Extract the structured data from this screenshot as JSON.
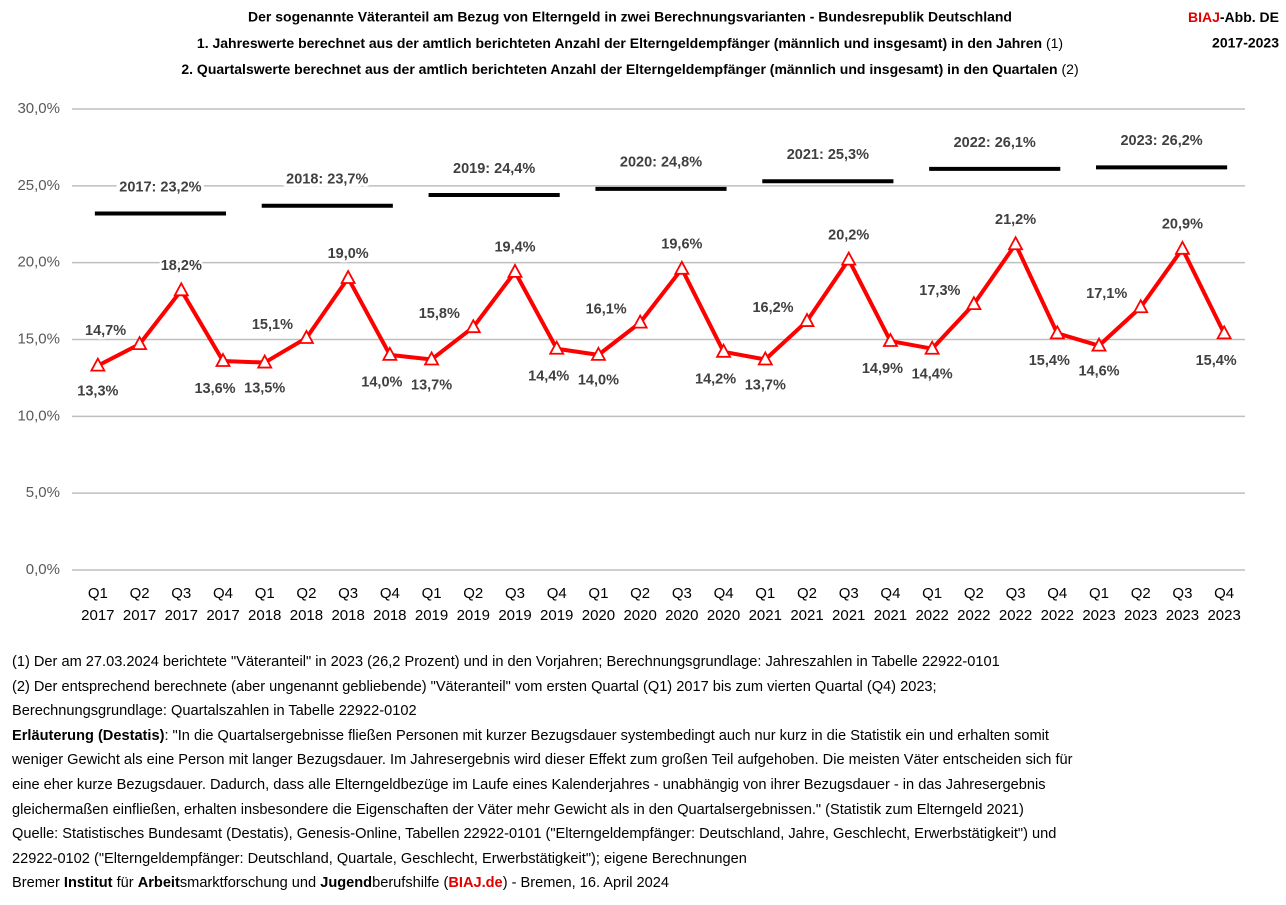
{
  "chart_data": {
    "type": "line",
    "title": "Der sogenannte Väteranteil am Bezug von Elterngeld in zwei Berechnungsvarianten - Bundesrepublik Deutschland",
    "subtitles": [
      {
        "text": "1. Jahreswerte berechnet aus der amtlich berichteten Anzahl der Elterngeldempfänger (männlich und insgesamt) in den Jahren",
        "note": "(1)"
      },
      {
        "text": "2. Quartalswerte berechnet aus der amtlich berichteten Anzahl der Elterngeldempfänger (männlich und insgesamt) in den Quartalen",
        "note": "(2)"
      }
    ],
    "badge": {
      "brand": "BIAJ",
      "rest": "-Abb. DE",
      "brand_color": "#e00000"
    },
    "period": "2017-2023",
    "categories": [
      "Q1 2017",
      "Q2 2017",
      "Q3 2017",
      "Q4 2017",
      "Q1 2018",
      "Q2 2018",
      "Q3 2018",
      "Q4 2018",
      "Q1 2019",
      "Q2 2019",
      "Q3 2019",
      "Q4 2019",
      "Q1 2020",
      "Q2 2020",
      "Q3 2020",
      "Q4 2020",
      "Q1 2021",
      "Q2 2021",
      "Q3 2021",
      "Q4 2021",
      "Q1 2022",
      "Q2 2022",
      "Q3 2022",
      "Q4 2022",
      "Q1 2023",
      "Q2 2023",
      "Q3 2023",
      "Q4 2023"
    ],
    "series": [
      {
        "color": "#ff0000",
        "values": [
          13.3,
          14.7,
          18.2,
          13.6,
          13.5,
          15.1,
          19.0,
          14.0,
          13.7,
          15.8,
          19.4,
          14.4,
          14.0,
          16.1,
          19.6,
          14.2,
          13.7,
          16.2,
          20.2,
          14.9,
          14.4,
          17.3,
          21.2,
          15.4,
          14.6,
          17.1,
          20.9,
          15.4
        ],
        "value_labels": [
          "13,3%",
          "14,7%",
          "18,2%",
          "13,6%",
          "13,5%",
          "15,1%",
          "19,0%",
          "14,0%",
          "13,7%",
          "15,8%",
          "19,4%",
          "14,4%",
          "14,0%",
          "16,1%",
          "19,6%",
          "14,2%",
          "13,7%",
          "16,2%",
          "20,2%",
          "14,9%",
          "14,4%",
          "17,3%",
          "21,2%",
          "15,4%",
          "14,6%",
          "17,1%",
          "20,9%",
          "15,4%"
        ]
      }
    ],
    "annual": {
      "color": "#000000",
      "values": [
        23.2,
        23.7,
        24.4,
        24.8,
        25.3,
        26.1,
        26.2
      ],
      "value_labels": [
        "2017: 23,2%",
        "2018: 23,7%",
        "2019: 24,4%",
        "2020: 24,8%",
        "2021: 25,3%",
        "2022: 26,1%",
        "2023: 26,2%"
      ]
    },
    "ylim": [
      0,
      30
    ],
    "yticks": [
      {
        "value": 0,
        "label": "0,0%"
      },
      {
        "value": 5,
        "label": "5,0%"
      },
      {
        "value": 10,
        "label": "10,0%"
      },
      {
        "value": 15,
        "label": "15,0%"
      },
      {
        "value": 20,
        "label": "20,0%"
      },
      {
        "value": 25,
        "label": "25,0%"
      },
      {
        "value": 30,
        "label": "30,0%"
      }
    ],
    "grid": true
  },
  "notes": [
    [
      "(1) Der am 27.03.2024 berichtete \"Väteranteil\" in 2023 (26,2 Prozent) und in den Vorjahren; Berechnungsgrundlage: Jahreszahlen in Tabelle 22922-0101"
    ],
    [
      "(2) Der entsprechend berechnete (aber ungenannt gebliebende) \"Väteranteil\" vom ersten Quartal (Q1) 2017 bis zum vierten Quartal (Q4) 2023;"
    ],
    [
      "Berechnungsgrundlage: Quartalszahlen in Tabelle 22922-0102"
    ],
    [
      {
        "text": "Erläuterung (Destatis)",
        "bold": true
      },
      ": \"In die Quartalsergebnisse fließen Personen mit kurzer Bezugsdauer systembedingt auch nur kurz in die Statistik ein und erhalten somit"
    ],
    [
      "weniger Gewicht als eine Person mit langer Bezugsdauer. Im Jahresergebnis wird dieser Effekt zum großen Teil aufgehoben. Die meisten Väter entscheiden sich für"
    ],
    [
      "eine eher kurze Bezugsdauer. Dadurch, dass alle Elterngeldbezüge im Laufe eines Kalenderjahres - unabhängig von ihrer Bezugsdauer - in das Jahresergebnis"
    ],
    [
      "gleichermaßen einfließen, erhalten insbesondere die Eigenschaften der Väter mehr Gewicht als in den Quartalsergebnissen.\" (Statistik zum Elterngeld 2021)"
    ],
    [
      "Quelle: Statistisches Bundesamt (Destatis), Genesis-Online, Tabellen 22922-0101 (\"Elterngeldempfänger: Deutschland, Jahre, Geschlecht, Erwerbstätigkeit\") und"
    ],
    [
      "22922-0102 (\"Elterngeldempfänger: Deutschland, Quartale, Geschlecht, Erwerbstätigkeit\"); eigene Berechnungen"
    ],
    [
      "Bremer ",
      {
        "text": "Institut",
        "bold": true
      },
      " für ",
      {
        "text": "Arbeit",
        "bold": true
      },
      "smarktforschung und ",
      {
        "text": "Jugend",
        "bold": true
      },
      "berufshilfe (",
      {
        "text": "BIAJ.de",
        "bold": true,
        "color": "#e00000"
      },
      ") - Bremen, 16. April 2024"
    ]
  ]
}
